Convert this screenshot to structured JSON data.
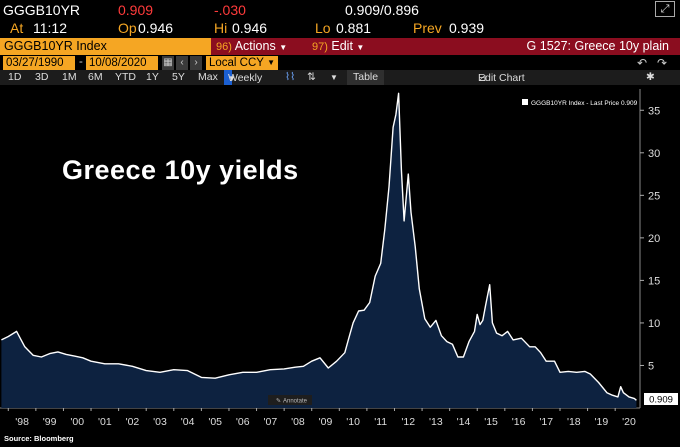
{
  "header": {
    "ticker": "GGGB10YR",
    "last": "0.909",
    "change": "-.030",
    "bid_ask": "0.909/0.896",
    "at_label": "At",
    "time": "11:12",
    "open_label": "Op",
    "open": "0.946",
    "high_label": "Hi",
    "high": "0.946",
    "low_label": "Lo",
    "low": "0.881",
    "prev_label": "Prev",
    "prev": "0.939"
  },
  "bar": {
    "ticker_index": "GGGB10YR Index",
    "actions_num": "96)",
    "actions_label": "Actions",
    "edit_num": "97)",
    "edit_label": "Edit",
    "title": "G 1527: Greece 10y plain"
  },
  "dates": {
    "start": "03/27/1990",
    "end": "10/08/2020",
    "currency": "Local CCY"
  },
  "toolbar": {
    "periods": [
      "1D",
      "3D",
      "1M",
      "6M",
      "YTD",
      "1Y",
      "5Y",
      "Max"
    ],
    "frequency": "Weekly",
    "table_label": "Table",
    "edit_chart_label": "Edit Chart"
  },
  "colors": {
    "amber": "#f5a623",
    "red": "#ff3b3b",
    "bar_red": "#8b0d1f",
    "area_fill": "#0d2240",
    "line": "#ffffff"
  },
  "annotate_label": "Annotate",
  "source": "Source: Bloomberg",
  "chart_data": {
    "type": "area",
    "overlay_title": "Greece 10y yields",
    "legend": "GGGB10YR Index - Last Price 0.909",
    "legend_position": "top-right",
    "last_value_label": "0.909",
    "x_ticks": [
      "'98",
      "'99",
      "'00",
      "'01",
      "'02",
      "'03",
      "'04",
      "'05",
      "'06",
      "'07",
      "'08",
      "'09",
      "'10",
      "'11",
      "'12",
      "'13",
      "'14",
      "'15",
      "'16",
      "'17",
      "'18",
      "'19",
      "'20"
    ],
    "y_ticks": [
      5,
      10,
      15,
      20,
      25,
      30,
      35
    ],
    "xlim": [
      1997.7,
      2020.9
    ],
    "ylim": [
      0,
      37.5
    ],
    "x": [
      1997.75,
      1998.0,
      1998.3,
      1998.6,
      1998.9,
      1999.2,
      1999.5,
      1999.8,
      2000.1,
      2000.4,
      2000.7,
      2001.0,
      2001.5,
      2002.0,
      2002.5,
      2003.0,
      2003.5,
      2004.0,
      2004.5,
      2005.0,
      2005.5,
      2006.0,
      2006.5,
      2007.0,
      2007.5,
      2008.0,
      2008.4,
      2008.7,
      2009.0,
      2009.3,
      2009.6,
      2009.9,
      2010.2,
      2010.35,
      2010.5,
      2010.7,
      2010.9,
      2011.1,
      2011.3,
      2011.5,
      2011.65,
      2011.8,
      2011.95,
      2012.05,
      2012.15,
      2012.25,
      2012.35,
      2012.5,
      2012.6,
      2012.75,
      2012.9,
      2013.1,
      2013.3,
      2013.5,
      2013.7,
      2013.9,
      2014.1,
      2014.3,
      2014.5,
      2014.7,
      2014.9,
      2015.0,
      2015.1,
      2015.2,
      2015.3,
      2015.45,
      2015.55,
      2015.7,
      2015.9,
      2016.1,
      2016.3,
      2016.6,
      2016.9,
      2017.1,
      2017.3,
      2017.5,
      2017.8,
      2018.0,
      2018.3,
      2018.6,
      2018.9,
      2019.1,
      2019.4,
      2019.7,
      2019.9,
      2020.1,
      2020.2,
      2020.3,
      2020.5,
      2020.7,
      2020.77
    ],
    "y": [
      8.0,
      8.4,
      9.0,
      7.2,
      6.2,
      6.0,
      6.4,
      6.6,
      6.3,
      6.1,
      5.9,
      5.5,
      5.2,
      5.2,
      4.9,
      4.4,
      4.2,
      4.5,
      4.4,
      3.6,
      3.5,
      3.9,
      4.2,
      4.2,
      4.5,
      4.6,
      4.8,
      4.9,
      5.5,
      5.9,
      4.7,
      5.5,
      6.5,
      8.3,
      10.0,
      11.4,
      11.5,
      12.4,
      15.5,
      17.0,
      21.0,
      26.0,
      33.0,
      34.5,
      37.0,
      28.0,
      22.0,
      27.5,
      23.0,
      19.0,
      14.0,
      10.5,
      9.5,
      10.3,
      8.5,
      7.8,
      7.5,
      6.0,
      6.0,
      7.8,
      9.0,
      11.0,
      9.8,
      10.3,
      12.0,
      14.5,
      10.0,
      8.8,
      8.5,
      9.0,
      8.0,
      8.2,
      7.2,
      7.2,
      6.5,
      5.5,
      5.5,
      4.2,
      4.3,
      4.2,
      4.3,
      4.0,
      3.0,
      1.8,
      1.5,
      1.3,
      2.5,
      1.8,
      1.3,
      1.1,
      0.9
    ]
  }
}
